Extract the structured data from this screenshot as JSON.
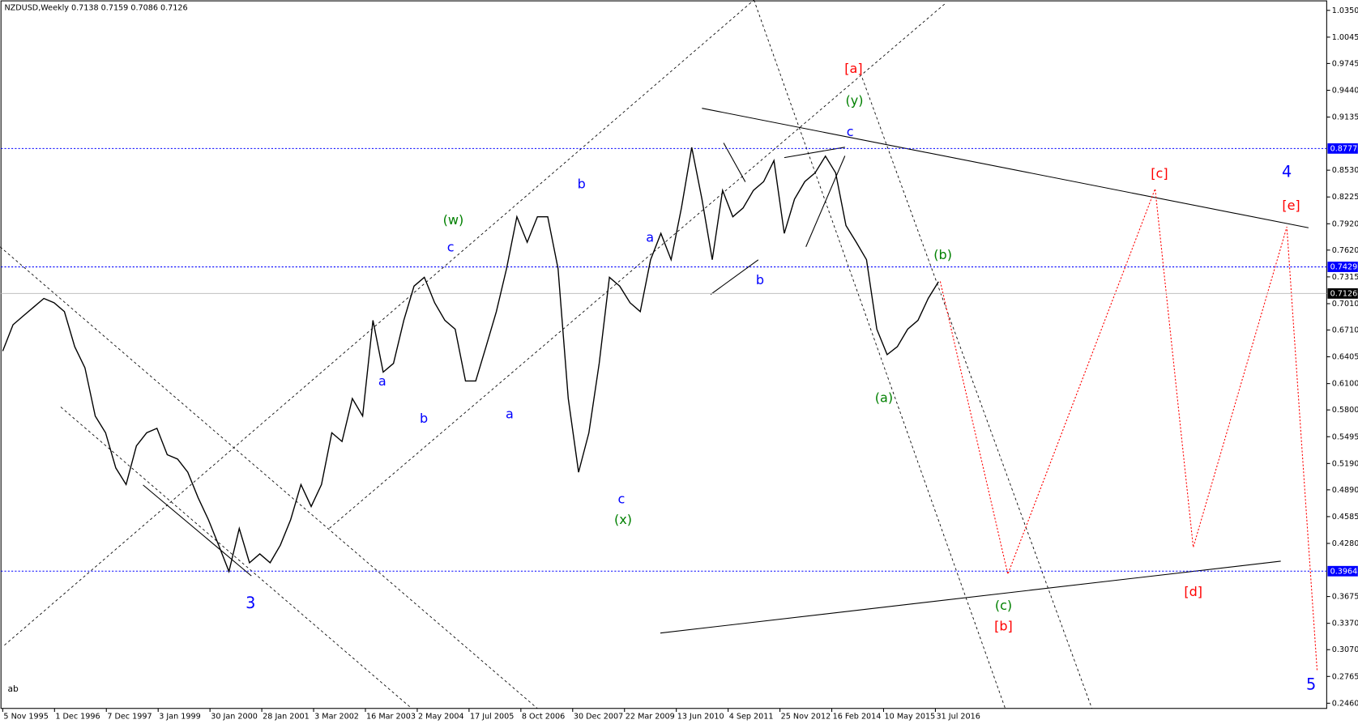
{
  "chart_data": {
    "type": "line",
    "title": "NZDUSD,Weekly  0.7138 0.7159 0.7086 0.7126",
    "color": "#000000",
    "values": [
      0.647,
      0.677,
      0.687,
      0.697,
      0.707,
      0.702,
      0.692,
      0.652,
      0.628,
      0.573,
      0.554,
      0.514,
      0.495,
      0.539,
      0.554,
      0.559,
      0.529,
      0.524,
      0.509,
      0.48,
      0.455,
      0.426,
      0.396,
      0.445,
      0.406,
      0.416,
      0.406,
      0.426,
      0.455,
      0.495,
      0.47,
      0.495,
      0.554,
      0.544,
      0.593,
      0.573,
      0.682,
      0.623,
      0.633,
      0.682,
      0.721,
      0.731,
      0.702,
      0.682,
      0.672,
      0.613,
      0.613,
      0.652,
      0.692,
      0.741,
      0.8,
      0.771,
      0.8,
      0.8,
      0.741,
      0.593,
      0.509,
      0.554,
      0.633,
      0.731,
      0.721,
      0.702,
      0.692,
      0.751,
      0.781,
      0.751,
      0.81,
      0.879,
      0.82,
      0.751,
      0.83,
      0.8,
      0.81,
      0.83,
      0.84,
      0.864,
      0.781,
      0.82,
      0.84,
      0.85,
      0.869,
      0.85,
      0.79,
      0.771,
      0.751,
      0.672,
      0.643,
      0.652,
      0.672,
      0.682,
      0.707,
      0.726
    ],
    "ylim": [
      0.2401,
      1.0468
    ],
    "yticks": [
      {
        "value": 1.035,
        "label": "1.0350"
      },
      1.0045,
      0.9745,
      {
        "value": 0.944,
        "label": "0.9440"
      },
      0.9135,
      {
        "value": 0.853,
        "label": "0.8530"
      },
      0.8225,
      {
        "value": 0.792,
        "label": "0.7920"
      },
      {
        "value": 0.762,
        "label": "0.7620"
      },
      0.7315,
      {
        "value": 0.701,
        "label": "0.7010"
      },
      {
        "value": 0.671,
        "label": "0.6710"
      },
      0.6405,
      {
        "value": 0.61,
        "label": "0.6100"
      },
      {
        "value": 0.58,
        "label": "0.5800"
      },
      0.5495,
      {
        "value": 0.519,
        "label": "0.5190"
      },
      {
        "value": 0.489,
        "label": "0.4890"
      },
      0.4585,
      {
        "value": 0.428,
        "label": "0.4280"
      },
      0.3675,
      {
        "value": 0.337,
        "label": "0.3370"
      },
      {
        "value": 0.307,
        "label": "0.3070"
      },
      0.2765,
      {
        "value": 0.246,
        "label": "0.2460"
      }
    ],
    "xtick_labels": [
      "5 Nov 1995",
      "1 Dec 1996",
      "7 Dec 1997",
      "3 Jan 1999",
      "30 Jan 2000",
      "28 Jan 2001",
      "3 Mar 2002",
      "16 Mar 2003",
      "2 May 2004",
      "17 Jul 2005",
      "8 Oct 2006",
      "30 Dec 2007",
      "22 Mar 2009",
      "13 Jun 2010",
      "4 Sep 2011",
      "25 Nov 2012",
      "16 Feb 2014",
      "10 May 2015",
      "31 Jul 2016"
    ],
    "levels": [
      {
        "value": 0.8777,
        "color": "#0000ff"
      },
      {
        "value": 0.7429,
        "color": "#0000ff"
      },
      {
        "value": 0.3964,
        "color": "#0000ff"
      },
      {
        "value": 0.7126,
        "color": "#000000"
      }
    ],
    "annotations": [
      {
        "text": "3",
        "color": "#0000ff"
      },
      {
        "text": "a",
        "color": "#0000ff"
      },
      {
        "text": "b",
        "color": "#0000ff"
      },
      {
        "text": "c",
        "color": "#0000ff"
      },
      {
        "text": "(w)",
        "color": "#008000"
      },
      {
        "text": "a",
        "color": "#0000ff"
      },
      {
        "text": "b",
        "color": "#0000ff"
      },
      {
        "text": "a",
        "color": "#0000ff"
      },
      {
        "text": "c",
        "color": "#0000ff"
      },
      {
        "text": "(x)",
        "color": "#008000"
      },
      {
        "text": "b",
        "color": "#0000ff"
      },
      {
        "text": "c",
        "color": "#0000ff"
      },
      {
        "text": "(y)",
        "color": "#008000"
      },
      {
        "text": "[a]",
        "color": "#ff0000"
      },
      {
        "text": "(a)",
        "color": "#008000"
      },
      {
        "text": "(b)",
        "color": "#008000"
      },
      {
        "text": "(c)",
        "color": "#008000"
      },
      {
        "text": "[b]",
        "color": "#ff0000"
      },
      {
        "text": "[c]",
        "color": "#ff0000"
      },
      {
        "text": "[d]",
        "color": "#ff0000"
      },
      {
        "text": "[e]",
        "color": "#ff0000"
      },
      {
        "text": "4",
        "color": "#0000ff"
      },
      {
        "text": "5",
        "color": "#0000ff"
      },
      {
        "text": "ab",
        "color": "#000000"
      }
    ]
  }
}
